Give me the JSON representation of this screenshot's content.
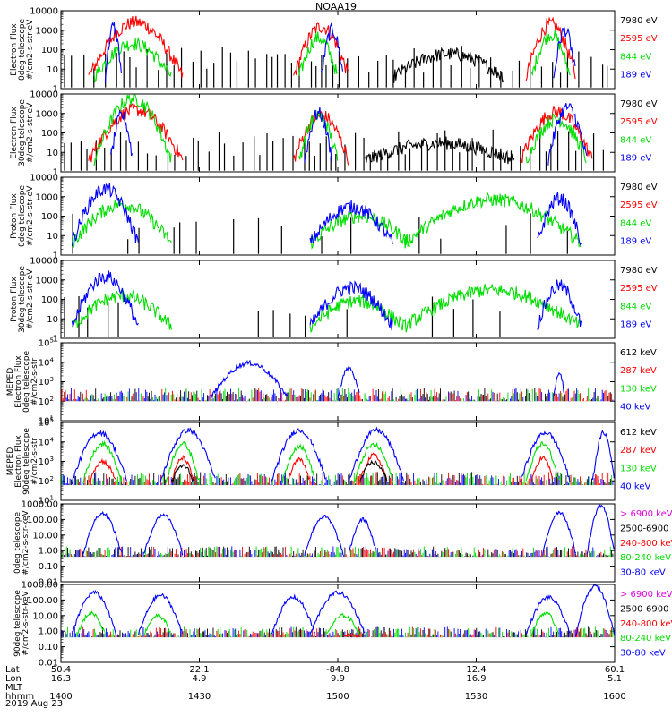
{
  "title": "NOAA19",
  "colors": {
    "black": "#000000",
    "red": "#ff0000",
    "green": "#00dd00",
    "blue": "#0000ff",
    "magenta": "#dd00dd"
  },
  "chart_data": [
    {
      "type": "line",
      "ylabel": [
        "Electron Flux",
        "0deg telescope",
        "#/cm2-s-str-eV"
      ],
      "yscale": "log",
      "ylim": [
        1,
        10000
      ],
      "ticks": [
        1,
        10,
        100,
        1000,
        10000
      ],
      "tick_labels": [
        "1",
        "10",
        "100",
        "1000",
        "10000"
      ],
      "series": [
        {
          "name": "7980 eV",
          "color": "black"
        },
        {
          "name": "2595 eV",
          "color": "red"
        },
        {
          "name": "844 eV",
          "color": "green"
        },
        {
          "name": "189 eV",
          "color": "blue"
        }
      ],
      "bursts": [
        {
          "t0": 0.05,
          "t1": 0.22,
          "peak": 2500,
          "color": "red"
        },
        {
          "t0": 0.42,
          "t1": 0.52,
          "peak": 1500,
          "color": "red"
        },
        {
          "t0": 0.84,
          "t1": 0.93,
          "peak": 2000,
          "color": "red"
        },
        {
          "t0": 0.06,
          "t1": 0.2,
          "peak": 200,
          "color": "green"
        },
        {
          "t0": 0.43,
          "t1": 0.5,
          "peak": 400,
          "color": "green"
        },
        {
          "t0": 0.85,
          "t1": 0.92,
          "peak": 600,
          "color": "green"
        },
        {
          "t0": 0.08,
          "t1": 0.11,
          "peak": 1500,
          "color": "blue"
        },
        {
          "t0": 0.47,
          "t1": 0.51,
          "peak": 1000,
          "color": "blue"
        },
        {
          "t0": 0.89,
          "t1": 0.93,
          "peak": 1000,
          "color": "blue"
        },
        {
          "t0": 0.6,
          "t1": 0.8,
          "peak": 60,
          "color": "black"
        }
      ]
    },
    {
      "type": "line",
      "ylabel": [
        "Electron Flux",
        "30deg telescope",
        "#/cm2-s-str-eV"
      ],
      "yscale": "log",
      "ylim": [
        1,
        10000
      ],
      "ticks": [
        1,
        10,
        100,
        1000,
        10000
      ],
      "tick_labels": [
        "1",
        "10",
        "100",
        "1000",
        "10000"
      ],
      "series": [
        {
          "name": "7980 eV",
          "color": "black"
        },
        {
          "name": "2595 eV",
          "color": "red"
        },
        {
          "name": "844 eV",
          "color": "green"
        },
        {
          "name": "189 eV",
          "color": "blue"
        }
      ],
      "bursts": [
        {
          "t0": 0.05,
          "t1": 0.22,
          "peak": 1500,
          "color": "red"
        },
        {
          "t0": 0.42,
          "t1": 0.52,
          "peak": 800,
          "color": "red"
        },
        {
          "t0": 0.83,
          "t1": 0.96,
          "peak": 1200,
          "color": "red"
        },
        {
          "t0": 0.06,
          "t1": 0.2,
          "peak": 6000,
          "color": "green"
        },
        {
          "t0": 0.43,
          "t1": 0.5,
          "peak": 800,
          "color": "green"
        },
        {
          "t0": 0.84,
          "t1": 0.95,
          "peak": 500,
          "color": "green"
        },
        {
          "t0": 0.09,
          "t1": 0.13,
          "peak": 800,
          "color": "blue"
        },
        {
          "t0": 0.44,
          "t1": 0.49,
          "peak": 1000,
          "color": "blue"
        },
        {
          "t0": 0.88,
          "t1": 0.95,
          "peak": 2000,
          "color": "blue"
        },
        {
          "t0": 0.55,
          "t1": 0.82,
          "peak": 30,
          "color": "black"
        }
      ]
    },
    {
      "type": "line",
      "ylabel": [
        "Proton Flux",
        "0deg telescope",
        "#/cm2-s-str-eV"
      ],
      "yscale": "log",
      "ylim": [
        1,
        10000
      ],
      "ticks": [
        1,
        10,
        100,
        1000,
        10000
      ],
      "tick_labels": [
        "1",
        "10",
        "100",
        "1000",
        "10000"
      ],
      "series": [
        {
          "name": "7980 eV",
          "color": "black"
        },
        {
          "name": "2595 eV",
          "color": "red"
        },
        {
          "name": "844 eV",
          "color": "green"
        },
        {
          "name": "189 eV",
          "color": "blue"
        }
      ],
      "bursts": [
        {
          "t0": 0.02,
          "t1": 0.2,
          "peak": 400,
          "color": "green"
        },
        {
          "t0": 0.45,
          "t1": 0.63,
          "peak": 100,
          "color": "green"
        },
        {
          "t0": 0.62,
          "t1": 0.94,
          "peak": 700,
          "color": "green"
        },
        {
          "t0": 0.02,
          "t1": 0.14,
          "peak": 2500,
          "color": "blue"
        },
        {
          "t0": 0.45,
          "t1": 0.6,
          "peak": 300,
          "color": "blue"
        },
        {
          "t0": 0.86,
          "t1": 0.94,
          "peak": 800,
          "color": "blue"
        }
      ]
    },
    {
      "type": "line",
      "ylabel": [
        "Proton Flux",
        "30deg telescope",
        "#/cm2-s-str-eV"
      ],
      "yscale": "log",
      "ylim": [
        1,
        10000
      ],
      "ticks": [
        1,
        10,
        100,
        1000,
        10000
      ],
      "tick_labels": [
        "1",
        "10",
        "100",
        "1000",
        "10000"
      ],
      "series": [
        {
          "name": "7980 eV",
          "color": "black"
        },
        {
          "name": "2595 eV",
          "color": "red"
        },
        {
          "name": "844 eV",
          "color": "green"
        },
        {
          "name": "189 eV",
          "color": "blue"
        }
      ],
      "bursts": [
        {
          "t0": 0.02,
          "t1": 0.2,
          "peak": 150,
          "color": "green"
        },
        {
          "t0": 0.45,
          "t1": 0.62,
          "peak": 80,
          "color": "green"
        },
        {
          "t0": 0.62,
          "t1": 0.94,
          "peak": 300,
          "color": "green"
        },
        {
          "t0": 0.02,
          "t1": 0.14,
          "peak": 1500,
          "color": "blue"
        },
        {
          "t0": 0.45,
          "t1": 0.6,
          "peak": 400,
          "color": "blue"
        },
        {
          "t0": 0.86,
          "t1": 0.94,
          "peak": 500,
          "color": "blue"
        }
      ]
    },
    {
      "type": "line",
      "ylabel": [
        "MEPED",
        "Electron Flux",
        "0deg telescope",
        "#/cm2-s-str"
      ],
      "yscale": "log",
      "ylim": [
        10,
        100000
      ],
      "ticks": [
        10,
        100,
        1000,
        10000,
        100000
      ],
      "tick_labels": [
        "10^1",
        "10^2",
        "10^3",
        "10^4",
        "10^5"
      ],
      "series": [
        {
          "name": "612 keV",
          "color": "black"
        },
        {
          "name": "287 keV",
          "color": "red"
        },
        {
          "name": "130 keV",
          "color": "green"
        },
        {
          "name": "40 keV",
          "color": "blue"
        }
      ],
      "bursts": [
        {
          "t0": 0.27,
          "t1": 0.41,
          "peak": 9000,
          "color": "blue"
        },
        {
          "t0": 0.5,
          "t1": 0.54,
          "peak": 5000,
          "color": "blue"
        },
        {
          "t0": 0.89,
          "t1": 0.91,
          "peak": 3000,
          "color": "blue"
        }
      ],
      "noise_level": 250
    },
    {
      "type": "line",
      "ylabel": [
        "MEPED",
        "Electron Flux",
        "90deg telescope",
        "#/cm2-s-str"
      ],
      "yscale": "log",
      "ylim": [
        10,
        100000
      ],
      "ticks": [
        10,
        100,
        1000,
        10000,
        100000
      ],
      "tick_labels": [
        "10^1",
        "10^2",
        "10^3",
        "10^4",
        "10^5"
      ],
      "series": [
        {
          "name": "612 keV",
          "color": "black"
        },
        {
          "name": "287 keV",
          "color": "red"
        },
        {
          "name": "130 keV",
          "color": "green"
        },
        {
          "name": "40 keV",
          "color": "blue"
        }
      ],
      "bursts": [
        {
          "t0": 0.02,
          "t1": 0.12,
          "peak": 30000,
          "color": "blue"
        },
        {
          "t0": 0.18,
          "t1": 0.28,
          "peak": 40000,
          "color": "blue"
        },
        {
          "t0": 0.38,
          "t1": 0.48,
          "peak": 40000,
          "color": "blue"
        },
        {
          "t0": 0.52,
          "t1": 0.62,
          "peak": 40000,
          "color": "blue"
        },
        {
          "t0": 0.83,
          "t1": 0.92,
          "peak": 30000,
          "color": "blue"
        },
        {
          "t0": 0.96,
          "t1": 1.0,
          "peak": 30000,
          "color": "blue"
        },
        {
          "t0": 0.04,
          "t1": 0.11,
          "peak": 8000,
          "color": "green"
        },
        {
          "t0": 0.19,
          "t1": 0.25,
          "peak": 8000,
          "color": "green"
        },
        {
          "t0": 0.4,
          "t1": 0.46,
          "peak": 6000,
          "color": "green"
        },
        {
          "t0": 0.53,
          "t1": 0.6,
          "peak": 7000,
          "color": "green"
        },
        {
          "t0": 0.84,
          "t1": 0.9,
          "peak": 8000,
          "color": "green"
        },
        {
          "t0": 0.05,
          "t1": 0.1,
          "peak": 1000,
          "color": "red"
        },
        {
          "t0": 0.2,
          "t1": 0.24,
          "peak": 1500,
          "color": "red"
        },
        {
          "t0": 0.41,
          "t1": 0.45,
          "peak": 1200,
          "color": "red"
        },
        {
          "t0": 0.54,
          "t1": 0.59,
          "peak": 2000,
          "color": "red"
        },
        {
          "t0": 0.85,
          "t1": 0.89,
          "peak": 1500,
          "color": "red"
        },
        {
          "t0": 0.2,
          "t1": 0.24,
          "peak": 600,
          "color": "black"
        },
        {
          "t0": 0.54,
          "t1": 0.59,
          "peak": 900,
          "color": "black"
        }
      ],
      "noise_level": 150
    },
    {
      "type": "line",
      "ylabel": [
        "0deg telescope",
        "#/cm2-s-str-keV"
      ],
      "yscale": "log",
      "ylim": [
        0.01,
        1000
      ],
      "ticks": [
        0.01,
        0.1,
        1,
        10,
        100,
        1000
      ],
      "tick_labels": [
        "0.01",
        "0.10",
        "1.00",
        "10.00",
        "100.00",
        "1000.00"
      ],
      "series": [
        {
          "name": "> 6900 keV",
          "color": "magenta"
        },
        {
          "name": "2500-6900",
          "color": "black"
        },
        {
          "name": "240-800 keV",
          "color": "red"
        },
        {
          "name": "80-240 keV",
          "color": "green"
        },
        {
          "name": "30-80 keV",
          "color": "blue"
        }
      ],
      "bursts": [
        {
          "t0": 0.04,
          "t1": 0.11,
          "peak": 250,
          "color": "blue"
        },
        {
          "t0": 0.15,
          "t1": 0.22,
          "peak": 200,
          "color": "blue"
        },
        {
          "t0": 0.44,
          "t1": 0.51,
          "peak": 150,
          "color": "blue"
        },
        {
          "t0": 0.52,
          "t1": 0.57,
          "peak": 100,
          "color": "blue"
        },
        {
          "t0": 0.87,
          "t1": 0.93,
          "peak": 300,
          "color": "blue"
        },
        {
          "t0": 0.95,
          "t1": 1.0,
          "peak": 800,
          "color": "blue"
        }
      ],
      "noise_level": 1
    },
    {
      "type": "line",
      "ylabel": [
        "90deg telescope",
        "#/cm2-s-str-keV"
      ],
      "yscale": "log",
      "ylim": [
        0.01,
        1000
      ],
      "ticks": [
        0.01,
        0.1,
        1,
        10,
        100,
        1000
      ],
      "tick_labels": [
        "0.01",
        "0.10",
        "1.00",
        "10.00",
        "100.00",
        "1000.00"
      ],
      "series": [
        {
          "name": "> 6900 keV",
          "color": "magenta"
        },
        {
          "name": "2500-6900",
          "color": "black"
        },
        {
          "name": "240-800 keV",
          "color": "red"
        },
        {
          "name": "80-240 keV",
          "color": "green"
        },
        {
          "name": "30-80 keV",
          "color": "blue"
        }
      ],
      "bursts": [
        {
          "t0": 0.02,
          "t1": 0.1,
          "peak": 300,
          "color": "blue"
        },
        {
          "t0": 0.14,
          "t1": 0.22,
          "peak": 200,
          "color": "blue"
        },
        {
          "t0": 0.38,
          "t1": 0.46,
          "peak": 150,
          "color": "blue"
        },
        {
          "t0": 0.45,
          "t1": 0.55,
          "peak": 300,
          "color": "blue"
        },
        {
          "t0": 0.84,
          "t1": 0.92,
          "peak": 150,
          "color": "blue"
        },
        {
          "t0": 0.93,
          "t1": 1.0,
          "peak": 800,
          "color": "blue"
        },
        {
          "t0": 0.03,
          "t1": 0.08,
          "peak": 15,
          "color": "green"
        },
        {
          "t0": 0.15,
          "t1": 0.2,
          "peak": 10,
          "color": "green"
        },
        {
          "t0": 0.48,
          "t1": 0.54,
          "peak": 10,
          "color": "green"
        },
        {
          "t0": 0.85,
          "t1": 0.9,
          "peak": 15,
          "color": "green"
        },
        {
          "t0": 0.51,
          "t1": 0.54,
          "peak": 0.5,
          "color": "red"
        }
      ],
      "noise_level": 1
    }
  ],
  "x_axis": {
    "rows": [
      {
        "label": "Lat",
        "values": [
          "50.4",
          "22.1",
          "-84.8",
          "12.4",
          "60.1"
        ]
      },
      {
        "label": "Lon",
        "values": [
          "16.3",
          "4.9",
          "9.9",
          "16.9",
          "5.1"
        ]
      },
      {
        "label": "MLT",
        "values": [
          "",
          "",
          "",
          "",
          ""
        ]
      },
      {
        "label": "hhmm",
        "values": [
          "1400",
          "1430",
          "1500",
          "1530",
          "1600"
        ]
      }
    ],
    "date": "2019 Aug 23"
  }
}
